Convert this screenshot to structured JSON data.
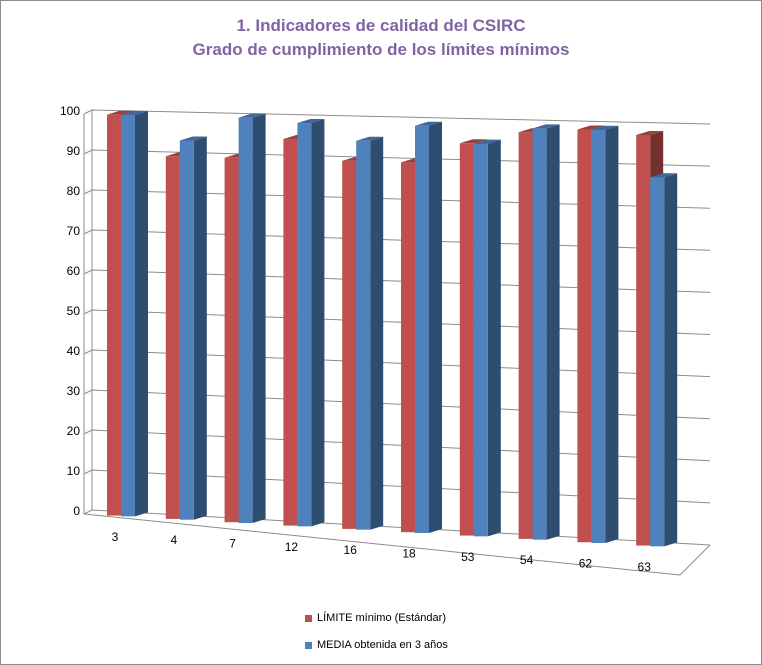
{
  "chart_data": {
    "type": "bar",
    "title": "1. Indicadores de calidad del CSIRC",
    "subtitle": "Grado de cumplimiento de los límites mínimos",
    "categories": [
      "3",
      "4",
      "7",
      "12",
      "16",
      "18",
      "53",
      "54",
      "62",
      "63"
    ],
    "series": [
      {
        "name": "LÍMITE mínimo (Estándar)",
        "color": "#c0504d",
        "values": [
          100,
          90,
          90,
          95,
          90,
          90,
          95,
          98,
          99,
          98
        ]
      },
      {
        "name": "MEDIA obtenida en 3 años",
        "color": "#4f81bd",
        "values": [
          100,
          94,
          100,
          99,
          95,
          99,
          95,
          99,
          99,
          88
        ]
      }
    ],
    "ylim": [
      0,
      100
    ],
    "yticks": [
      0,
      10,
      20,
      30,
      40,
      50,
      60,
      70,
      80,
      90,
      100
    ],
    "grid": true,
    "legend_position": "bottom",
    "is_3d": true
  }
}
